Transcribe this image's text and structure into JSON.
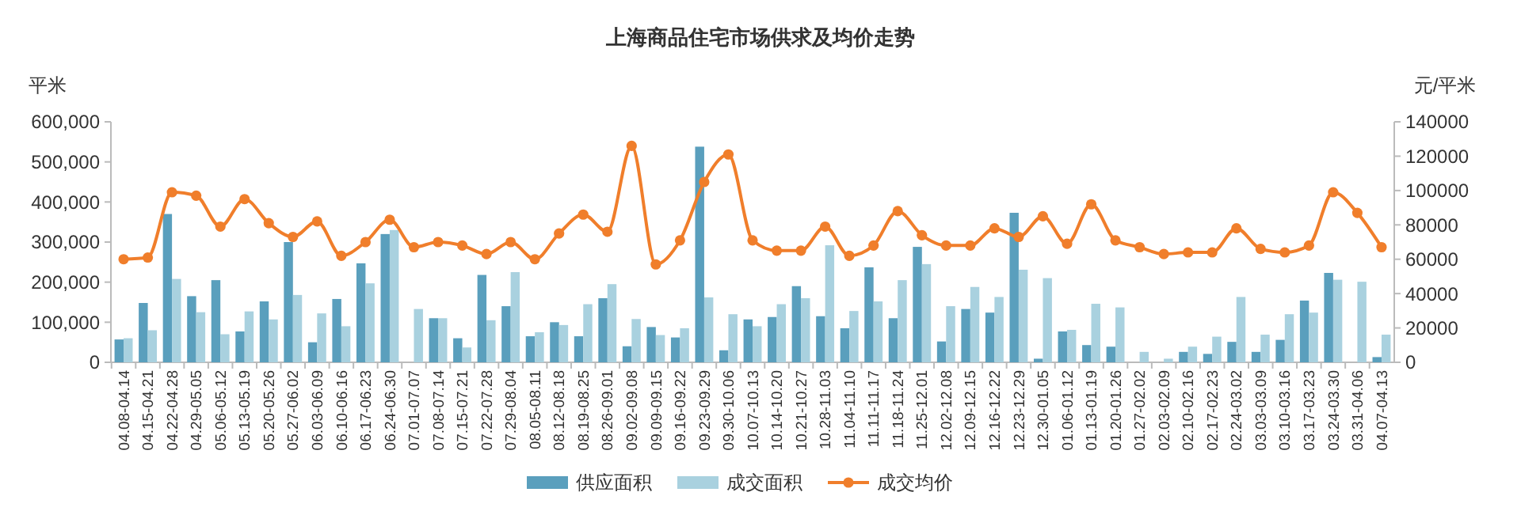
{
  "chart_data": {
    "type": "bar",
    "title": "上海商品住宅市场供求及均价走势",
    "ylabel": "平米",
    "y2label": "元/平米",
    "categories": [
      "04.08-04.14",
      "04.15-04.21",
      "04.22-04.28",
      "04.29-05.05",
      "05.06-05.12",
      "05.13-05.19",
      "05.20-05.26",
      "05.27-06.02",
      "06.03-06.09",
      "06.10-06.16",
      "06.17-06.23",
      "06.24-06.30",
      "07.01-07.07",
      "07.08-07.14",
      "07.15-07.21",
      "07.22-07.28",
      "07.29-08.04",
      "08.05-08.11",
      "08.12-08.18",
      "08.19-08.25",
      "08.26-09.01",
      "09.02-09.08",
      "09.09-09.15",
      "09.16-09.22",
      "09.23-09.29",
      "09.30-10.06",
      "10.07-10.13",
      "10.14-10.20",
      "10.21-10.27",
      "10.28-11.03",
      "11.04-11.10",
      "11.11-11.17",
      "11.18-11.24",
      "11.25-12.01",
      "12.02-12.08",
      "12.09-12.15",
      "12.16-12.22",
      "12.23-12.29",
      "12.30-01.05",
      "01.06-01.12",
      "01.13-01.19",
      "01.20-01.26",
      "01.27-02.02",
      "02.03-02.09",
      "02.10-02.16",
      "02.17-02.23",
      "02.24-03.02",
      "03.03-03.09",
      "03.10-03.16",
      "03.17-03.23",
      "03.24-03.30",
      "03.31-04.06",
      "04.07-04.13"
    ],
    "series": [
      {
        "name": "供应面积",
        "color": "#5a9fbd",
        "values": [
          57000,
          148000,
          370000,
          165000,
          205000,
          77000,
          152000,
          300000,
          50000,
          158000,
          247000,
          320000,
          0,
          110000,
          60000,
          218000,
          140000,
          65000,
          100000,
          65000,
          160000,
          40000,
          88000,
          62000,
          538000,
          30000,
          107000,
          113000,
          190000,
          115000,
          85000,
          237000,
          110000,
          288000,
          52000,
          133000,
          124000,
          373000,
          9000,
          77000,
          43000,
          39000,
          0,
          0,
          26000,
          21000,
          51000,
          26000,
          56000,
          154000,
          223000,
          0,
          13000
        ]
      },
      {
        "name": "成交面积",
        "color": "#a9d1df",
        "values": [
          60000,
          80000,
          208000,
          125000,
          70000,
          127000,
          107000,
          168000,
          122000,
          90000,
          197000,
          330000,
          133000,
          110000,
          37000,
          105000,
          225000,
          75000,
          93000,
          145000,
          195000,
          108000,
          68000,
          85000,
          162000,
          120000,
          90000,
          145000,
          160000,
          292000,
          128000,
          152000,
          205000,
          245000,
          140000,
          188000,
          163000,
          231000,
          210000,
          81000,
          146000,
          137000,
          26000,
          9000,
          39000,
          64000,
          163000,
          69000,
          120000,
          124000,
          206000,
          201000,
          69000
        ]
      },
      {
        "name": "成交均价",
        "type": "line",
        "axis": "y2",
        "color": "#f07e2b",
        "values": [
          60000,
          61000,
          99000,
          97000,
          79000,
          95000,
          81000,
          73000,
          82000,
          62000,
          70000,
          83000,
          67000,
          70000,
          68000,
          63000,
          70000,
          60000,
          75000,
          86000,
          76000,
          126000,
          57000,
          71000,
          105000,
          121000,
          71000,
          65000,
          65000,
          79000,
          62000,
          68000,
          88000,
          74000,
          68000,
          68000,
          78000,
          73000,
          85000,
          69000,
          92000,
          71000,
          67000,
          63000,
          64000,
          64000,
          78000,
          66000,
          64000,
          68000,
          99000,
          87000,
          67000
        ]
      }
    ],
    "ylim": [
      0,
      600000
    ],
    "yticks": [
      {
        "value": 0,
        "label": "0"
      },
      {
        "value": 100000,
        "label": "100,000"
      },
      {
        "value": 200000,
        "label": "200,000"
      },
      {
        "value": 300000,
        "label": "300,000"
      },
      {
        "value": 400000,
        "label": "400,000"
      },
      {
        "value": 500000,
        "label": "500,000"
      },
      {
        "value": 600000,
        "label": "600,000"
      }
    ],
    "y2lim": [
      0,
      140000
    ],
    "y2ticks": [
      0,
      20000,
      40000,
      60000,
      80000,
      100000,
      120000,
      140000
    ],
    "marker": "circle",
    "legend": "bottom",
    "grid": false
  }
}
